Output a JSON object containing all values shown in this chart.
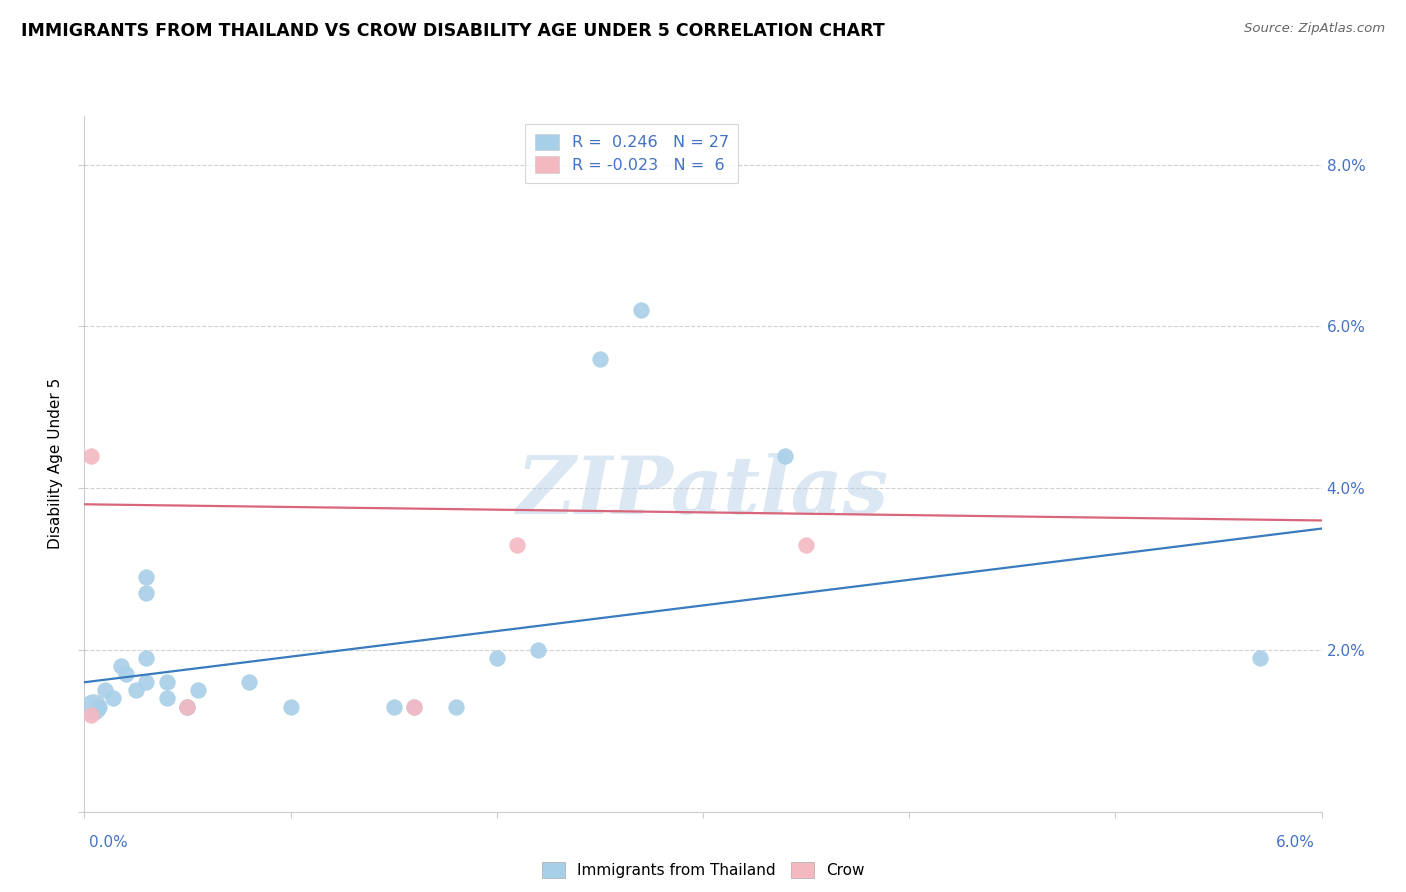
{
  "title": "IMMIGRANTS FROM THAILAND VS CROW DISABILITY AGE UNDER 5 CORRELATION CHART",
  "source": "Source: ZipAtlas.com",
  "ylabel": "Disability Age Under 5",
  "xlim": [
    0.0,
    0.06
  ],
  "ylim": [
    0.0,
    0.086
  ],
  "xticks": [
    0.0,
    0.01,
    0.02,
    0.03,
    0.04,
    0.05,
    0.06
  ],
  "yticks": [
    0.0,
    0.02,
    0.04,
    0.06,
    0.08
  ],
  "legend_r1": "R =  0.246   N = 27",
  "legend_r2": "R = -0.023   N =  6",
  "blue_scatter_color": "#a8cfe8",
  "pink_scatter_color": "#f4b8c1",
  "blue_line_color": "#3a7bbf",
  "pink_line_color": "#d9657a",
  "label_color": "#4472c4",
  "title_color": "#000000",
  "thailand_points": [
    [
      0.0004,
      0.013
    ],
    [
      0.0007,
      0.013
    ],
    [
      0.001,
      0.015
    ],
    [
      0.0014,
      0.014
    ],
    [
      0.0018,
      0.018
    ],
    [
      0.002,
      0.017
    ],
    [
      0.0025,
      0.015
    ],
    [
      0.003,
      0.016
    ],
    [
      0.003,
      0.019
    ],
    [
      0.003,
      0.027
    ],
    [
      0.003,
      0.029
    ],
    [
      0.004,
      0.014
    ],
    [
      0.004,
      0.016
    ],
    [
      0.005,
      0.013
    ],
    [
      0.005,
      0.013
    ],
    [
      0.0055,
      0.015
    ],
    [
      0.008,
      0.016
    ],
    [
      0.01,
      0.013
    ],
    [
      0.015,
      0.013
    ],
    [
      0.016,
      0.013
    ],
    [
      0.018,
      0.013
    ],
    [
      0.02,
      0.019
    ],
    [
      0.022,
      0.02
    ],
    [
      0.025,
      0.056
    ],
    [
      0.027,
      0.062
    ],
    [
      0.034,
      0.044
    ],
    [
      0.057,
      0.019
    ]
  ],
  "thailand_sizes": [
    350,
    130,
    130,
    130,
    130,
    130,
    130,
    130,
    130,
    130,
    130,
    130,
    130,
    130,
    130,
    130,
    130,
    130,
    130,
    130,
    130,
    130,
    130,
    130,
    130,
    130,
    130
  ],
  "crow_points": [
    [
      0.0003,
      0.012
    ],
    [
      0.0003,
      0.044
    ],
    [
      0.005,
      0.013
    ],
    [
      0.016,
      0.013
    ],
    [
      0.021,
      0.033
    ],
    [
      0.035,
      0.033
    ]
  ],
  "crow_sizes": [
    130,
    130,
    130,
    130,
    130,
    130
  ],
  "blue_trendline": [
    [
      0.0,
      0.016
    ],
    [
      0.06,
      0.035
    ]
  ],
  "pink_trendline": [
    [
      0.0,
      0.038
    ],
    [
      0.06,
      0.036
    ]
  ],
  "watermark": "ZIPatlas",
  "bg_color": "#ffffff",
  "grid_color": "#cccccc",
  "spine_color": "#cccccc"
}
